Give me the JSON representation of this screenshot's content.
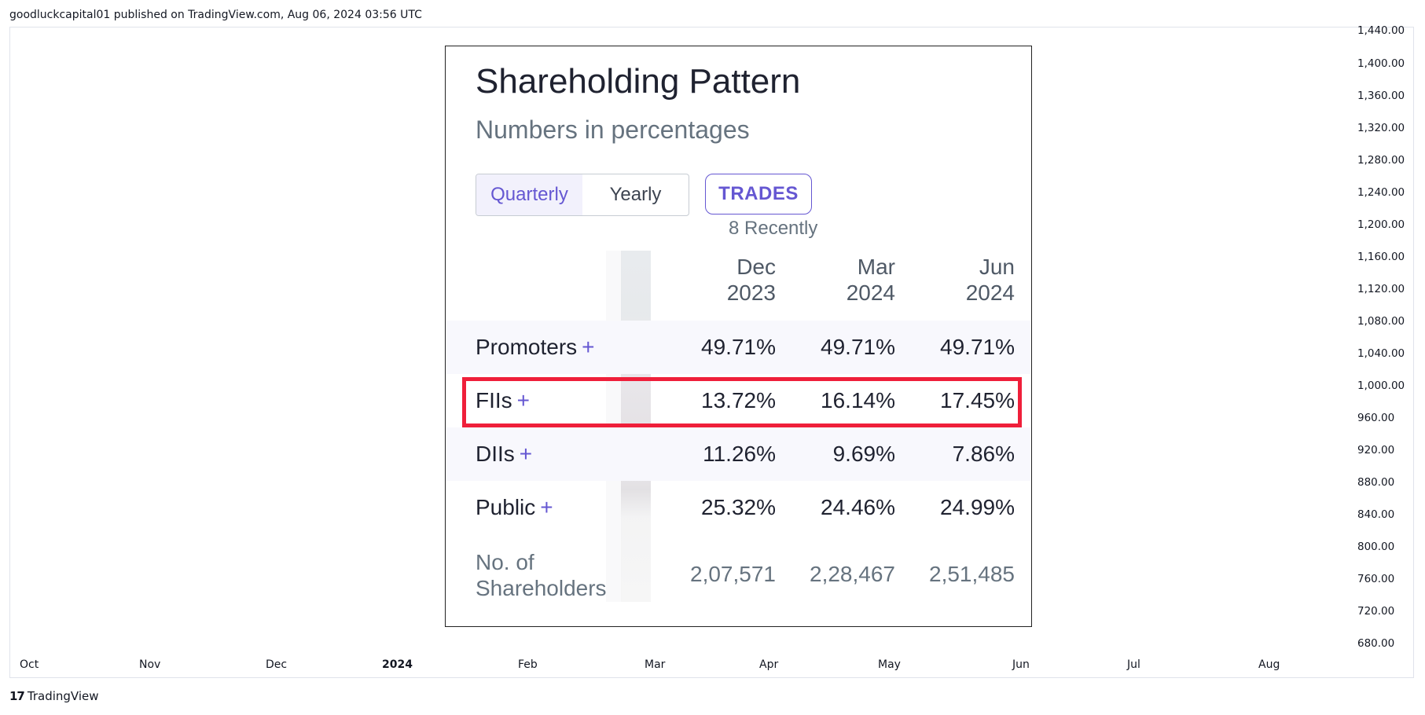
{
  "header": {
    "published_line": "goodluckcapital01 published on TradingView.com, Aug 06, 2024 03:56 UTC"
  },
  "price_axis": [
    "1,440.00",
    "1,400.00",
    "1,360.00",
    "1,320.00",
    "1,280.00",
    "1,240.00",
    "1,200.00",
    "1,160.00",
    "1,120.00",
    "1,080.00",
    "1,040.00",
    "1,000.00",
    "960.00",
    "920.00",
    "880.00",
    "840.00",
    "800.00",
    "760.00",
    "720.00",
    "680.00"
  ],
  "time_axis": [
    "Oct",
    "Nov",
    "Dec",
    "2024",
    "Feb",
    "Mar",
    "Apr",
    "May",
    "Jun",
    "Jul",
    "Aug"
  ],
  "footer": {
    "brand": "TradingView",
    "logo_mark": "17"
  },
  "shareholding": {
    "title": "Shareholding Pattern",
    "subtitle": "Numbers in percentages",
    "tabs": {
      "quarterly": "Quarterly",
      "yearly": "Yearly"
    },
    "trades_button": "TRADES",
    "trades_sub": "8 Recently",
    "columns": [
      {
        "month": "Dec",
        "year": "2023"
      },
      {
        "month": "Mar",
        "year": "2024"
      },
      {
        "month": "Jun",
        "year": "2024"
      }
    ],
    "plus": "+",
    "rows": [
      {
        "label": "Promoters",
        "values": [
          "49.71%",
          "49.71%",
          "49.71%"
        ]
      },
      {
        "label": "FIIs",
        "values": [
          "13.72%",
          "16.14%",
          "17.45%"
        ]
      },
      {
        "label": "DIIs",
        "values": [
          "11.26%",
          "9.69%",
          "7.86%"
        ]
      },
      {
        "label": "Public",
        "values": [
          "25.32%",
          "24.46%",
          "24.99%"
        ]
      }
    ],
    "shareholders": {
      "label_line1": "No. of",
      "label_line2": "Shareholders",
      "values": [
        "2,07,571",
        "2,28,467",
        "2,51,485"
      ]
    }
  },
  "colors": {
    "accent": "#6557d2",
    "highlight": "#ef1f3a"
  }
}
